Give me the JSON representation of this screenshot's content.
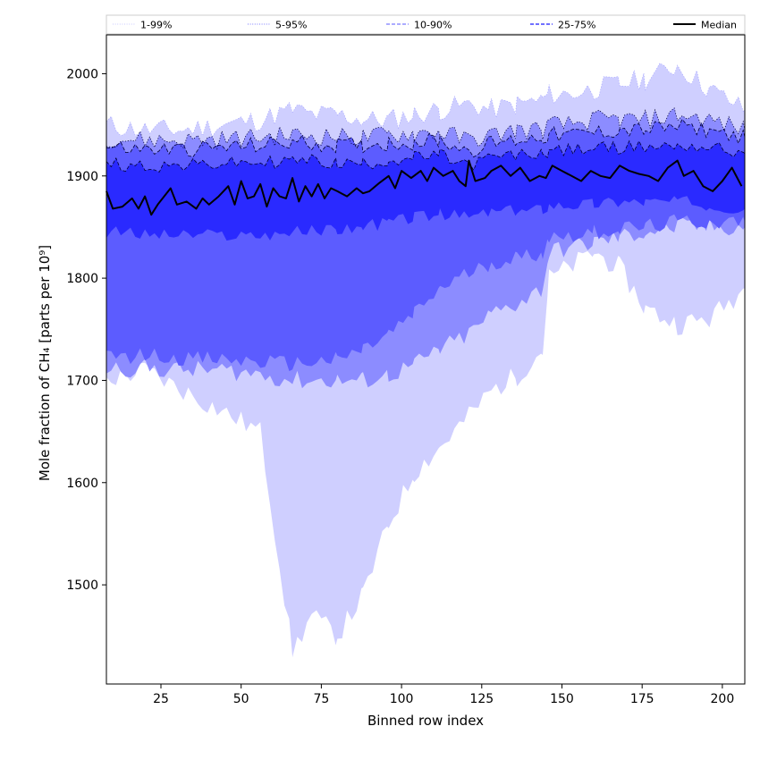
{
  "chart_data": {
    "type": "area",
    "xlabel": "Binned row index",
    "ylabel": "Mole fraction of CH₄ [parts per 10⁹]",
    "xlim": [
      8,
      207
    ],
    "ylim": [
      1403,
      2038
    ],
    "xticks": [
      25,
      50,
      75,
      100,
      125,
      150,
      175,
      200
    ],
    "yticks": [
      1500,
      1600,
      1700,
      1800,
      1900,
      2000
    ],
    "grid": false,
    "legend_position": "top",
    "x": [
      8,
      20,
      32,
      44,
      56,
      66,
      72,
      80,
      88,
      96,
      104,
      112,
      121,
      128,
      136,
      144,
      146,
      152,
      160,
      168,
      176,
      186,
      196,
      207
    ],
    "bands": [
      {
        "name": "1-99%",
        "color": "#cfcfff",
        "lower": [
          1700,
          1710,
          1690,
          1670,
          1650,
          1435,
          1470,
          1450,
          1490,
          1560,
          1610,
          1635,
          1665,
          1690,
          1705,
          1730,
          1800,
          1810,
          1825,
          1810,
          1770,
          1755,
          1760,
          1790
        ],
        "upper": [
          1950,
          1945,
          1945,
          1950,
          1955,
          1965,
          1960,
          1960,
          1955,
          1955,
          1960,
          1965,
          1970,
          1965,
          1970,
          1975,
          1980,
          1980,
          1985,
          1990,
          1995,
          2008,
          1985,
          1965
        ]
      },
      {
        "name": "5-95%",
        "color": "#8c8cff",
        "lower": [
          1712,
          1712,
          1710,
          1710,
          1706,
          1700,
          1700,
          1700,
          1700,
          1705,
          1715,
          1730,
          1745,
          1765,
          1775,
          1790,
          1825,
          1830,
          1835,
          1840,
          1845,
          1850,
          1850,
          1850
        ],
        "upper": [
          1938,
          1935,
          1935,
          1936,
          1938,
          1940,
          1940,
          1938,
          1938,
          1940,
          1942,
          1943,
          1935,
          1940,
          1945,
          1945,
          1950,
          1950,
          1955,
          1955,
          1955,
          1960,
          1955,
          1945
        ]
      },
      {
        "name": "10-90%",
        "color": "#5c5cff",
        "lower": [
          1722,
          1725,
          1722,
          1720,
          1718,
          1716,
          1718,
          1720,
          1730,
          1745,
          1765,
          1790,
          1805,
          1815,
          1820,
          1825,
          1840,
          1842,
          1845,
          1848,
          1850,
          1855,
          1855,
          1855
        ],
        "upper": [
          1928,
          1926,
          1926,
          1928,
          1930,
          1933,
          1932,
          1930,
          1930,
          1932,
          1933,
          1935,
          1925,
          1932,
          1935,
          1938,
          1940,
          1940,
          1942,
          1945,
          1945,
          1948,
          1945,
          1938
        ]
      },
      {
        "name": "25-75%",
        "color": "#2a2aff",
        "lower": [
          1845,
          1843,
          1842,
          1842,
          1842,
          1845,
          1846,
          1848,
          1850,
          1855,
          1860,
          1862,
          1860,
          1865,
          1865,
          1868,
          1872,
          1872,
          1873,
          1875,
          1875,
          1875,
          1872,
          1868
        ],
        "upper": [
          1912,
          1910,
          1910,
          1912,
          1913,
          1915,
          1915,
          1912,
          1912,
          1915,
          1918,
          1920,
          1910,
          1918,
          1920,
          1922,
          1925,
          1925,
          1927,
          1928,
          1928,
          1930,
          1928,
          1922
        ]
      }
    ],
    "median": {
      "name": "Median",
      "color": "#000000",
      "x": [
        8,
        10,
        13,
        16,
        18,
        20,
        22,
        24,
        26,
        28,
        30,
        33,
        36,
        38,
        40,
        43,
        46,
        48,
        50,
        52,
        54,
        56,
        58,
        60,
        62,
        64,
        66,
        68,
        70,
        72,
        74,
        76,
        78,
        80,
        83,
        86,
        88,
        90,
        93,
        96,
        98,
        100,
        103,
        106,
        108,
        110,
        113,
        116,
        118,
        120,
        121,
        123,
        126,
        128,
        131,
        134,
        137,
        140,
        143,
        145,
        147,
        150,
        153,
        156,
        159,
        162,
        165,
        168,
        171,
        174,
        177,
        180,
        183,
        186,
        188,
        191,
        194,
        197,
        200,
        203,
        206
      ],
      "y": [
        1885,
        1868,
        1870,
        1878,
        1868,
        1880,
        1862,
        1872,
        1880,
        1888,
        1872,
        1875,
        1868,
        1878,
        1872,
        1880,
        1890,
        1872,
        1895,
        1878,
        1880,
        1892,
        1870,
        1888,
        1880,
        1878,
        1898,
        1875,
        1890,
        1880,
        1892,
        1878,
        1888,
        1885,
        1880,
        1888,
        1883,
        1885,
        1893,
        1900,
        1888,
        1905,
        1898,
        1905,
        1895,
        1908,
        1900,
        1905,
        1895,
        1890,
        1915,
        1895,
        1898,
        1905,
        1910,
        1900,
        1908,
        1895,
        1900,
        1898,
        1910,
        1905,
        1900,
        1895,
        1905,
        1900,
        1898,
        1910,
        1905,
        1902,
        1900,
        1895,
        1908,
        1915,
        1900,
        1905,
        1890,
        1885,
        1895,
        1908,
        1890
      ]
    }
  },
  "legend": [
    {
      "label": "1-99%",
      "style": "dotted",
      "color": "#c8c8ff",
      "width": 1
    },
    {
      "label": "5-95%",
      "style": "dotted",
      "color": "#7a7aff",
      "width": 1
    },
    {
      "label": "10-90%",
      "style": "dashed",
      "color": "#7a7aff",
      "width": 1.2
    },
    {
      "label": "25-75%",
      "style": "dashed",
      "color": "#4040ff",
      "width": 1.5
    },
    {
      "label": "Median",
      "style": "solid",
      "color": "#000000",
      "width": 2
    }
  ]
}
